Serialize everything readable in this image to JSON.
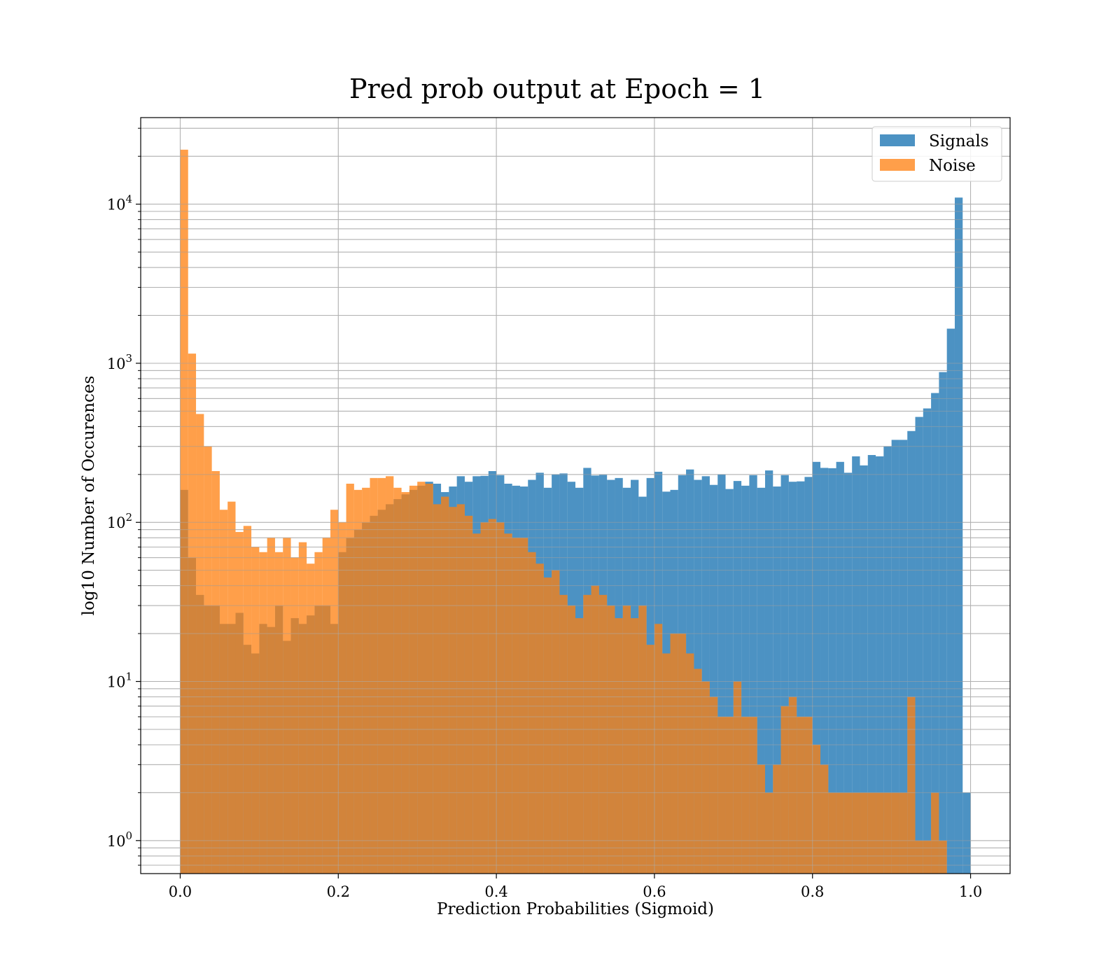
{
  "chart_data": {
    "type": "bar",
    "title": "Pred prob output at Epoch = 1",
    "xlabel": "Prediction Probabilities (Sigmoid)",
    "ylabel": "log10 Number of Occurences",
    "xlim": [
      -0.05,
      1.05
    ],
    "ylim": [
      0.62,
      35000
    ],
    "yscale": "log",
    "grid": true,
    "legend_position": "top-right",
    "xticks": [
      {
        "value": 0.0,
        "label": "0.0"
      },
      {
        "value": 0.2,
        "label": "0.2"
      },
      {
        "value": 0.4,
        "label": "0.4"
      },
      {
        "value": 0.6,
        "label": "0.6"
      },
      {
        "value": 0.8,
        "label": "0.8"
      },
      {
        "value": 1.0,
        "label": "1.0"
      }
    ],
    "yticks": [
      {
        "value": 1,
        "base": "10",
        "exp": "0"
      },
      {
        "value": 10,
        "base": "10",
        "exp": "1"
      },
      {
        "value": 100,
        "base": "10",
        "exp": "2"
      },
      {
        "value": 1000,
        "base": "10",
        "exp": "3"
      },
      {
        "value": 10000,
        "base": "10",
        "exp": "4"
      }
    ],
    "bins": 100,
    "bin_range": [
      0,
      1
    ],
    "series": [
      {
        "name": "Signals",
        "color": "#1f77b4",
        "values": [
          160,
          60,
          35,
          30,
          30,
          23,
          23,
          27,
          17,
          15,
          23,
          22,
          30,
          18,
          25,
          23,
          26,
          30,
          30,
          23,
          65,
          80,
          90,
          100,
          110,
          120,
          130,
          140,
          150,
          160,
          170,
          180,
          175,
          155,
          168,
          195,
          180,
          195,
          196,
          210,
          198,
          175,
          170,
          168,
          185,
          205,
          165,
          200,
          203,
          180,
          165,
          220,
          197,
          199,
          185,
          190,
          165,
          185,
          145,
          190,
          208,
          156,
          160,
          198,
          215,
          185,
          195,
          172,
          200,
          162,
          182,
          170,
          198,
          165,
          212,
          168,
          198,
          180,
          181,
          193,
          240,
          220,
          219,
          240,
          205,
          260,
          228,
          265,
          260,
          300,
          330,
          330,
          375,
          460,
          520,
          650,
          880,
          1650,
          11000,
          2
        ],
        "alpha": 0.8
      },
      {
        "name": "Noise",
        "color": "#ff7f0e",
        "values": [
          22000,
          1150,
          480,
          300,
          210,
          120,
          135,
          87,
          95,
          70,
          65,
          80,
          65,
          80,
          60,
          75,
          55,
          65,
          80,
          120,
          100,
          175,
          160,
          165,
          190,
          190,
          195,
          165,
          155,
          170,
          180,
          175,
          130,
          145,
          125,
          130,
          110,
          85,
          100,
          105,
          100,
          85,
          80,
          80,
          65,
          55,
          45,
          50,
          35,
          30,
          25,
          35,
          40,
          35,
          30,
          25,
          30,
          25,
          30,
          17,
          23,
          15,
          20,
          20,
          15,
          12,
          10,
          8,
          6,
          6,
          10,
          6,
          6,
          3,
          2,
          3,
          7,
          8,
          6,
          6,
          4,
          3,
          2,
          2,
          2,
          2,
          2,
          2,
          2,
          2,
          2,
          2,
          8,
          1,
          1,
          2,
          1,
          0,
          0,
          0
        ],
        "alpha": 0.75
      }
    ]
  }
}
